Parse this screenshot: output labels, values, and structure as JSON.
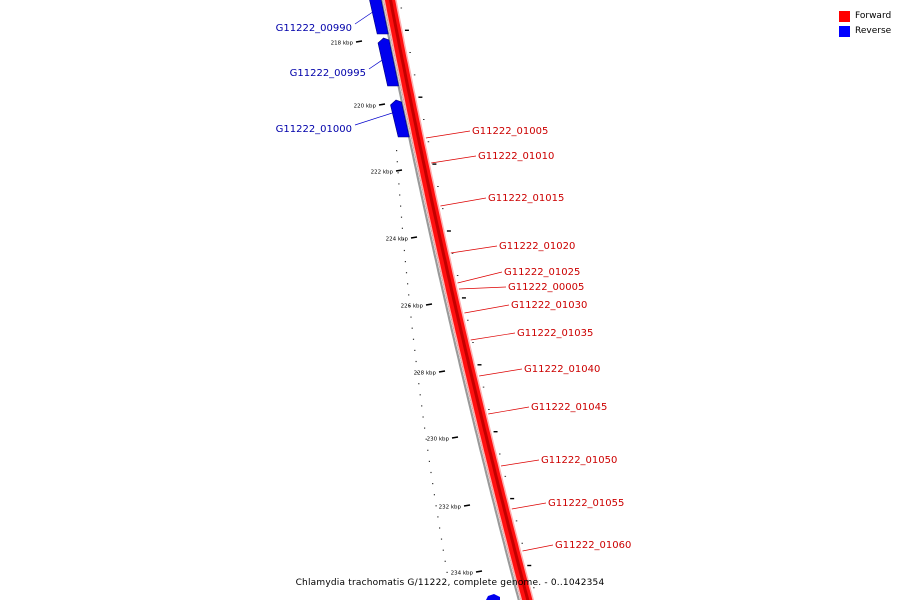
{
  "legend": {
    "forward_label": "Forward",
    "reverse_label": "Reverse",
    "forward_color": "#ff0000",
    "reverse_color": "#0000ff"
  },
  "caption": "Chlamydia trachomatis G/11222, complete genome. - 0..1042354",
  "scale_labels": [
    "218 kbp",
    "220 kbp",
    "222 kbp",
    "224 kbp",
    "226 kbp",
    "228 kbp",
    "230 kbp",
    "232 kbp",
    "234 kbp"
  ],
  "reverse_genes": [
    "G11222_00990",
    "G11222_00995",
    "G11222_01000"
  ],
  "forward_genes": [
    "G11222_01005",
    "G11222_01010",
    "G11222_01015",
    "G11222_01020",
    "G11222_01025",
    "G11222_00005",
    "G11222_01030",
    "G11222_01035",
    "G11222_01040",
    "G11222_01045",
    "G11222_01050",
    "G11222_01055",
    "G11222_01060"
  ]
}
